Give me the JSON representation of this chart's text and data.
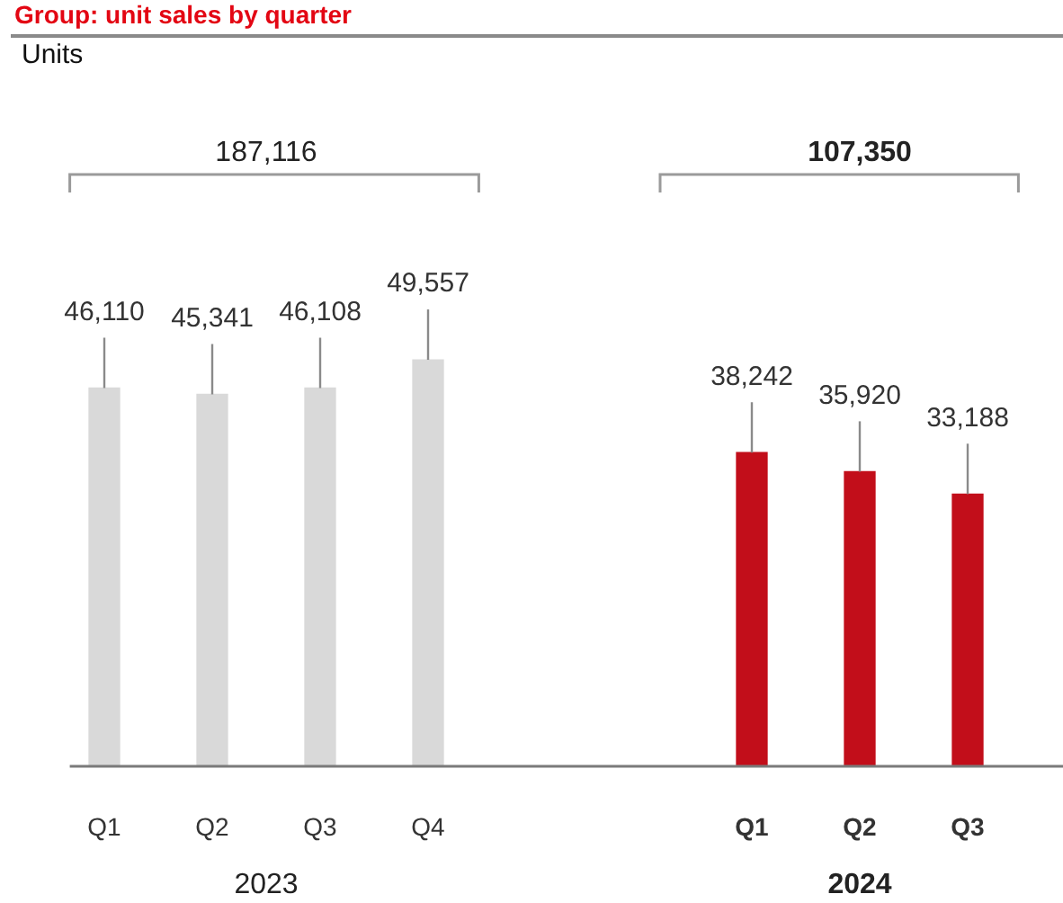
{
  "chart_data": {
    "type": "bar",
    "title": "Group: unit sales by quarter",
    "categories": [
      "Q1",
      "Q2",
      "Q3",
      "Q4",
      null,
      null,
      "Q1",
      "Q2",
      "Q3"
    ],
    "values": [
      46110,
      45341,
      46108,
      49557,
      null,
      null,
      38242,
      35920,
      33188
    ],
    "value_labels": [
      "46,110",
      "45,341",
      "46,108",
      "49,557",
      null,
      null,
      "38,242",
      "35,920",
      "33,188"
    ],
    "colors": [
      "#d9d9d9",
      "#d9d9d9",
      "#d9d9d9",
      "#d9d9d9",
      null,
      null,
      "#c20e1a",
      "#c20e1a",
      "#c20e1a"
    ],
    "grid": false,
    "legend": false,
    "annotations": [
      "Units",
      "187,116",
      "107,350",
      "2023",
      "2024"
    ]
  }
}
